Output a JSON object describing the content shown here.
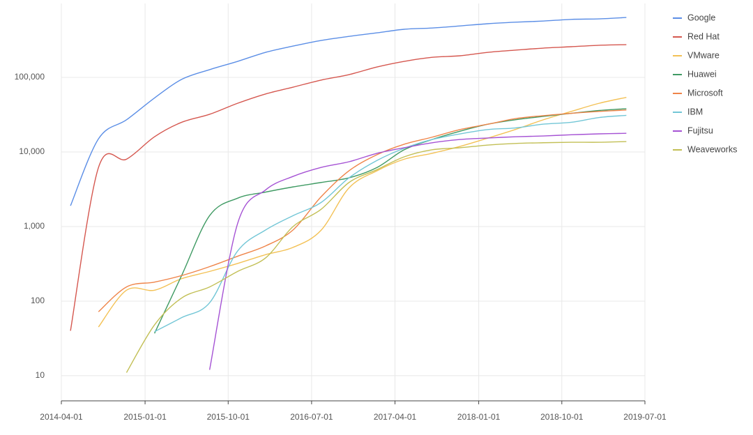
{
  "chart_data": {
    "type": "line",
    "log_scale": true,
    "grid": true,
    "legend": "right",
    "x": [
      "2014-05-01",
      "2014-08-01",
      "2014-11-01",
      "2015-02-01",
      "2015-05-01",
      "2015-08-01",
      "2015-11-01",
      "2016-02-01",
      "2016-05-01",
      "2016-08-01",
      "2016-11-01",
      "2017-02-01",
      "2017-05-01",
      "2017-08-01",
      "2017-11-01",
      "2018-02-01",
      "2018-05-01",
      "2018-08-01",
      "2018-11-01",
      "2019-02-01",
      "2019-05-01"
    ],
    "xlim": [
      "2014-04-01",
      "2019-07-01"
    ],
    "xticks": [
      "2014-04-01",
      "2015-01-01",
      "2015-10-01",
      "2016-07-01",
      "2017-04-01",
      "2018-01-01",
      "2018-10-01",
      "2019-07-01"
    ],
    "ylim": [
      4.6,
      980000
    ],
    "yticks": [
      10,
      100,
      {
        "value": 1000,
        "label": "1,000"
      },
      {
        "value": 10000,
        "label": "10,000"
      },
      {
        "value": 100000,
        "label": "100,000"
      }
    ],
    "series": [
      {
        "name": "Google",
        "color": "#5b8ee6",
        "values": [
          1900,
          15000,
          27000,
          53000,
          94000,
          127000,
          164000,
          217000,
          263000,
          313000,
          355000,
          396000,
          442000,
          460000,
          490000,
          525000,
          550000,
          570000,
          600000,
          610000,
          636000
        ]
      },
      {
        "name": "Red Hat",
        "color": "#d5574f",
        "values": [
          40,
          6200,
          8000,
          16000,
          25000,
          32000,
          45000,
          60000,
          74000,
          92000,
          109000,
          138000,
          164000,
          186000,
          195000,
          217000,
          232000,
          247000,
          258000,
          270000,
          275000
        ]
      },
      {
        "name": "VMware",
        "color": "#f3c155",
        "values": [
          null,
          45,
          140,
          140,
          200,
          250,
          320,
          420,
          525,
          890,
          3300,
          5600,
          8000,
          9600,
          11900,
          15400,
          20000,
          27000,
          35000,
          45000,
          54000
        ]
      },
      {
        "name": "Huawei",
        "color": "#3f9a63",
        "values": [
          null,
          null,
          null,
          37,
          220,
          1400,
          2400,
          2900,
          3400,
          3900,
          4500,
          6200,
          10700,
          14700,
          19000,
          23600,
          27000,
          30000,
          33000,
          36000,
          38000
        ]
      },
      {
        "name": "Microsoft",
        "color": "#ef8449",
        "values": [
          null,
          72,
          155,
          180,
          220,
          290,
          400,
          550,
          900,
          2500,
          5600,
          9200,
          12700,
          15800,
          20000,
          23600,
          28000,
          30700,
          33000,
          35000,
          36500
        ]
      },
      {
        "name": "IBM",
        "color": "#72c6d6",
        "values": [
          null,
          null,
          null,
          39,
          60,
          95,
          470,
          900,
          1400,
          2100,
          4500,
          7700,
          11200,
          14700,
          17500,
          20000,
          21000,
          23600,
          25000,
          29000,
          31000
        ]
      },
      {
        "name": "Fujitsu",
        "color": "#a552d4",
        "values": [
          null,
          null,
          null,
          null,
          null,
          12,
          1100,
          3100,
          4700,
          6200,
          7400,
          9600,
          11400,
          13300,
          14700,
          15400,
          16000,
          16400,
          17000,
          17500,
          17800
        ]
      },
      {
        "name": "Weaveworks",
        "color": "#c2bf55",
        "values": [
          null,
          null,
          11,
          48,
          110,
          155,
          250,
          380,
          1000,
          1700,
          3900,
          5800,
          8600,
          10700,
          11400,
          12400,
          13000,
          13300,
          13500,
          13500,
          13800
        ]
      }
    ]
  }
}
